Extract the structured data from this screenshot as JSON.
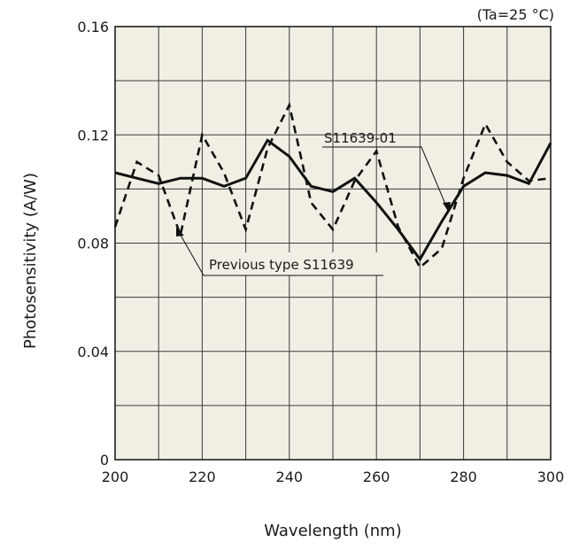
{
  "chart_data": {
    "type": "line",
    "title": "",
    "condition": "(Ta=25 °C)",
    "xlabel": "Wavelength (nm)",
    "ylabel": "Photosensitivity (A/W)",
    "xlim": [
      200,
      300
    ],
    "ylim": [
      0,
      0.16
    ],
    "xticks": [
      200,
      220,
      240,
      260,
      280,
      300
    ],
    "xtick_labels": [
      "200",
      "220",
      "240",
      "260",
      "280",
      "300"
    ],
    "yticks": [
      0,
      0.04,
      0.08,
      0.12,
      0.16
    ],
    "ytick_labels": [
      "0",
      "0.04",
      "0.08",
      "0.12",
      "0.16"
    ],
    "grid": true,
    "background_color": "#f1efe4",
    "series": [
      {
        "name": "S11639-01",
        "style": "solid",
        "color": "#111111",
        "x": [
          200,
          205,
          210,
          215,
          220,
          225,
          230,
          235,
          240,
          245,
          250,
          255,
          260,
          265,
          270,
          275,
          280,
          285,
          290,
          295,
          300
        ],
        "y": [
          0.106,
          0.104,
          0.102,
          0.104,
          0.104,
          0.101,
          0.104,
          0.118,
          0.112,
          0.101,
          0.099,
          0.104,
          0.095,
          0.085,
          0.074,
          0.088,
          0.101,
          0.106,
          0.105,
          0.102,
          0.117
        ]
      },
      {
        "name": "Previous type S11639",
        "style": "dashed",
        "color": "#111111",
        "x": [
          200,
          205,
          210,
          215,
          220,
          225,
          230,
          235,
          240,
          245,
          250,
          255,
          260,
          265,
          270,
          275,
          280,
          285,
          290,
          295,
          300
        ],
        "y": [
          0.086,
          0.11,
          0.105,
          0.083,
          0.12,
          0.106,
          0.085,
          0.115,
          0.131,
          0.095,
          0.085,
          0.103,
          0.114,
          0.086,
          0.071,
          0.078,
          0.104,
          0.124,
          0.11,
          0.103,
          0.104
        ]
      }
    ],
    "annotations": [
      {
        "text": "S11639-01",
        "series": "S11639-01"
      },
      {
        "text": "Previous type S11639",
        "series": "Previous type S11639"
      }
    ]
  }
}
